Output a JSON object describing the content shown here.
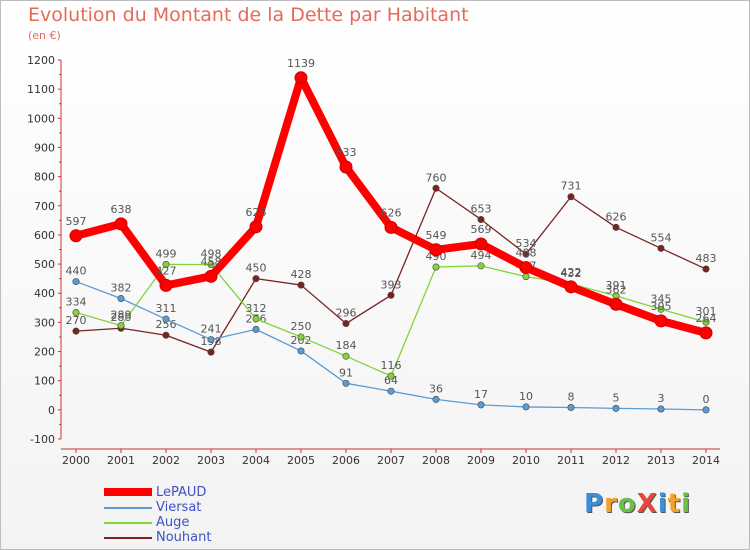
{
  "title": "Evolution du Montant de la Dette par Habitant",
  "unit": "(en €)",
  "brand": "ProXiti",
  "brand_colors": [
    "#3a8fd8",
    "#f2a12c",
    "#6cc04a",
    "#e8483c",
    "#3a8fd8",
    "#f2a12c",
    "#6cc04a"
  ],
  "chart_data": {
    "type": "line",
    "title": "Evolution du Montant de la Dette par Habitant",
    "ylabel": "(en €)",
    "xlabel": "",
    "ylim": [
      -100,
      1200
    ],
    "yticks": [
      -100,
      0,
      100,
      200,
      300,
      400,
      500,
      600,
      700,
      800,
      900,
      1000,
      1100,
      1200
    ],
    "x": [
      "2000",
      "2001",
      "2002",
      "2003",
      "2004",
      "2005",
      "2006",
      "2007",
      "2008",
      "2009",
      "2010",
      "2011",
      "2012",
      "2013",
      "2014"
    ],
    "grid": false,
    "legend_position": "bottom-left",
    "series": [
      {
        "name": "Nouhant",
        "color": "#7b2222",
        "values": [
          270,
          280,
          256,
          198,
          450,
          428,
          296,
          393,
          760,
          653,
          534,
          731,
          626,
          554,
          483
        ]
      },
      {
        "name": "Viersat",
        "color": "#5b9bd5",
        "values": [
          440,
          382,
          311,
          241,
          276,
          202,
          91,
          64,
          36,
          17,
          10,
          8,
          5,
          3,
          0
        ]
      },
      {
        "name": "Auge",
        "color": "#82d43a",
        "values": [
          334,
          289,
          499,
          498,
          312,
          250,
          184,
          116,
          490,
          494,
          457,
          432,
          391,
          345,
          301
        ]
      },
      {
        "name": "LePAUD",
        "color": "#ff0000",
        "values": [
          597,
          638,
          427,
          458,
          628,
          1139,
          833,
          626,
          549,
          569,
          488,
          422,
          362,
          305,
          264
        ]
      }
    ],
    "legend_order": [
      "LePAUD",
      "Viersat",
      "Auge",
      "Nouhant"
    ]
  }
}
